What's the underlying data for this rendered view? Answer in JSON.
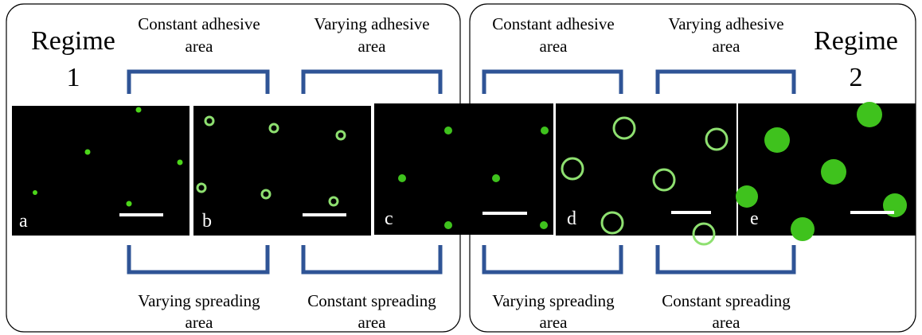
{
  "regime_labels": [
    {
      "word": "Regime",
      "number": "1"
    },
    {
      "word": "Regime",
      "number": "2"
    }
  ],
  "top_labels": [
    [
      "Constant adhesive",
      "area"
    ],
    [
      "Varying adhesive",
      "area"
    ],
    [
      "Constant adhesive",
      "area"
    ],
    [
      "Varying adhesive",
      "area"
    ]
  ],
  "bottom_labels": [
    [
      "Varying spreading",
      "area"
    ],
    [
      "Constant spreading",
      "area"
    ],
    [
      "Varying spreading",
      "area"
    ],
    [
      "Constant spreading",
      "area"
    ]
  ],
  "panels": [
    "a",
    "b",
    "c",
    "d",
    "e"
  ]
}
